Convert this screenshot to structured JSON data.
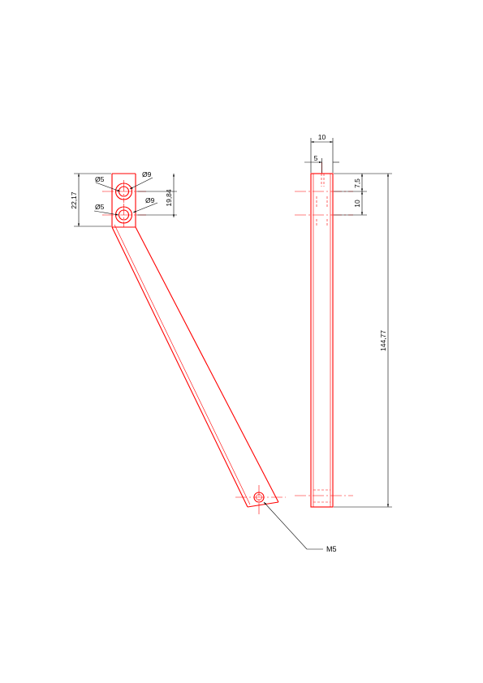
{
  "drawing": {
    "front_view": {
      "dim_width": "22,17",
      "dim_hole_spacing": "19,84",
      "dia_upper_small": "Ø5",
      "dia_upper_large": "Ø9",
      "dia_lower_small": "Ø5",
      "dia_lower_large": "Ø9",
      "thread_callout": "M5"
    },
    "side_view": {
      "dim_width": "10",
      "dim_half_width": "5",
      "dim_first_hole": "7,5",
      "dim_hole_pitch": "10",
      "dim_length": "144,77"
    }
  }
}
